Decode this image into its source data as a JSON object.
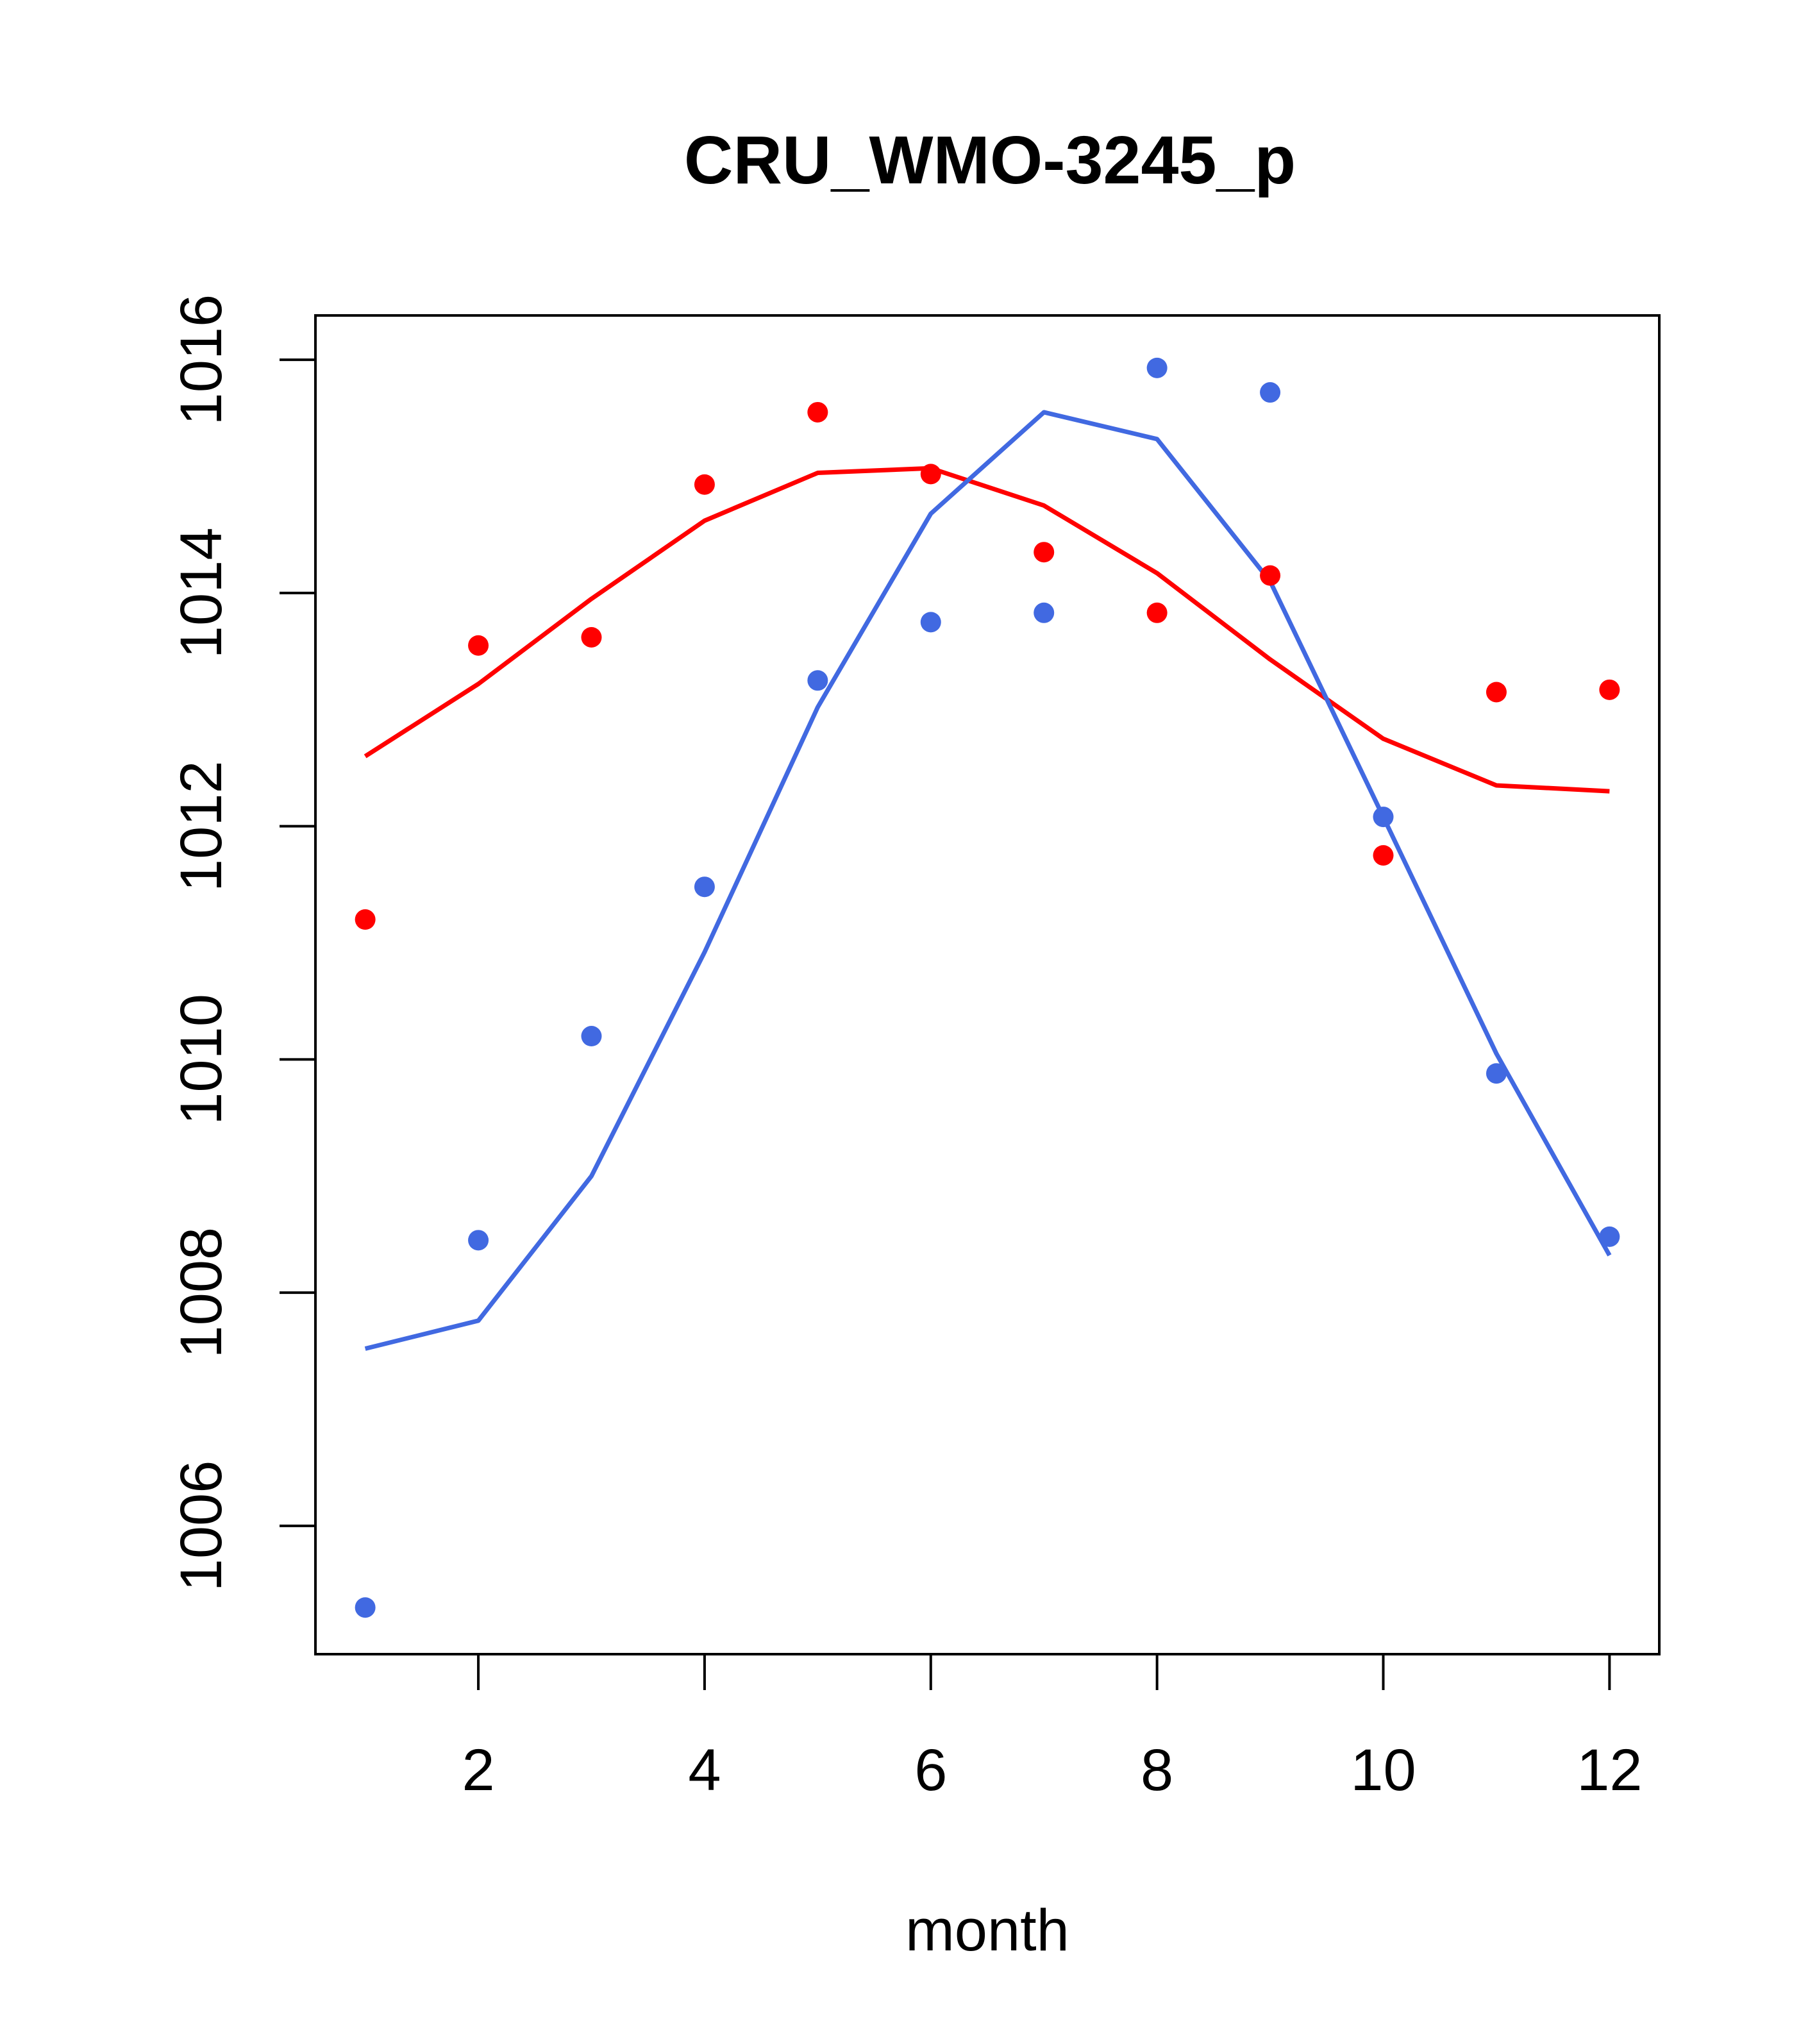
{
  "chart_data": {
    "type": "line+scatter",
    "title": "CRU_WMO-3245_p",
    "xlabel": "month",
    "ylabel": "",
    "xlim": [
      0.56,
      12.44
    ],
    "ylim": [
      1004.9,
      1016.38
    ],
    "xticks": [
      2,
      4,
      6,
      8,
      10,
      12
    ],
    "yticks": [
      1006,
      1008,
      1010,
      1012,
      1014,
      1016
    ],
    "grid": false,
    "colors": {
      "red": "#ff0000",
      "blue": "#4169e1",
      "axis": "#000000"
    },
    "series": [
      {
        "name": "red-points",
        "kind": "scatter",
        "color": "#ff0000",
        "x": [
          1,
          2,
          3,
          4,
          5,
          6,
          7,
          8,
          9,
          10,
          11,
          12
        ],
        "y": [
          1011.2,
          1013.55,
          1013.62,
          1014.93,
          1015.55,
          1015.02,
          1014.35,
          1013.83,
          1014.15,
          1011.75,
          1013.15,
          1013.17
        ]
      },
      {
        "name": "red-line",
        "kind": "line",
        "color": "#ff0000",
        "x": [
          1,
          2,
          3,
          4,
          5,
          6,
          7,
          8,
          9,
          10,
          11,
          12
        ],
        "y": [
          1012.6,
          1013.22,
          1013.95,
          1014.62,
          1015.03,
          1015.07,
          1014.75,
          1014.17,
          1013.43,
          1012.75,
          1012.35,
          1012.3
        ]
      },
      {
        "name": "blue-points",
        "kind": "scatter",
        "color": "#4169e1",
        "x": [
          1,
          2,
          3,
          4,
          5,
          6,
          7,
          8,
          9,
          10,
          11,
          12
        ],
        "y": [
          1005.3,
          1008.45,
          1010.2,
          1011.48,
          1013.25,
          1013.75,
          1013.83,
          1015.93,
          1015.72,
          1012.08,
          1009.88,
          1008.48
        ]
      },
      {
        "name": "blue-line",
        "kind": "line",
        "color": "#4169e1",
        "x": [
          1,
          2,
          3,
          4,
          5,
          6,
          7,
          8,
          9,
          10,
          11,
          12
        ],
        "y": [
          1007.52,
          1007.76,
          1009.0,
          1010.92,
          1013.02,
          1014.68,
          1015.55,
          1015.32,
          1014.1,
          1012.08,
          1010.05,
          1008.32
        ]
      }
    ]
  }
}
